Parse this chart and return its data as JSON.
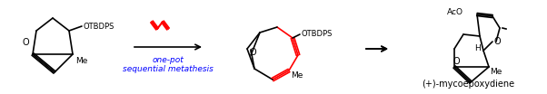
{
  "title": "(+)-mycoepoxydiene",
  "arrow_label_line1": "one-pot",
  "arrow_label_line2": "sequential metathesis",
  "reagent_color": "#ff0000",
  "label_color": "#0000ff",
  "structure_color": "#000000",
  "background_color": "#ffffff",
  "fig_width": 6.02,
  "fig_height": 1.04,
  "dpi": 100
}
